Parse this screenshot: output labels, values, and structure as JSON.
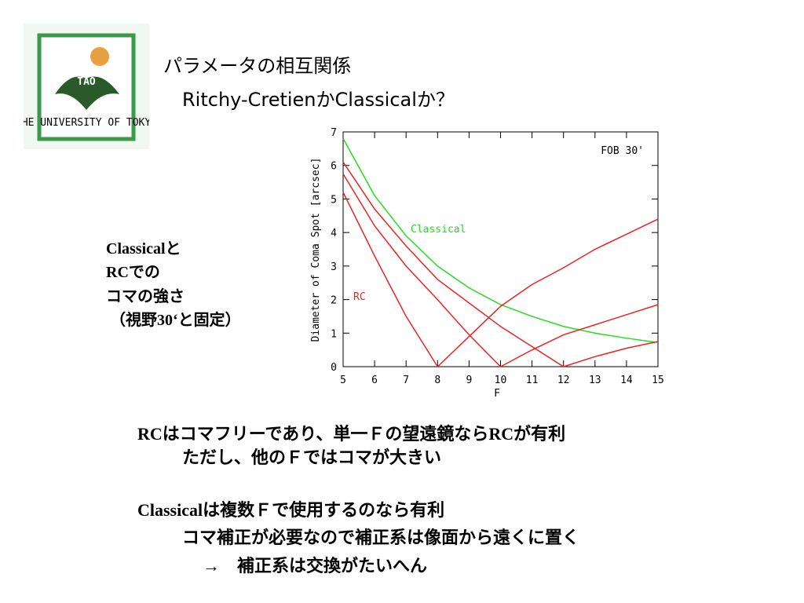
{
  "header": {
    "title": "パラメータの相互関係",
    "subtitle": "Ritchy-CretienかClassicalか？"
  },
  "logo": {
    "label": "TAO",
    "caption": "THE UNIVERSITY OF TOKYO"
  },
  "side_note": [
    "Classicalと",
    "RCでの",
    "コマの強さ",
    "（視野30‘と固定）"
  ],
  "bullets": [
    "RCはコマフリーであり、単一Ｆの望遠鏡ならRCが有利",
    "ただし、他のＦではコマが大きい",
    "Classicalは複数Ｆで使用するのなら有利",
    "コマ補正が必要なので補正系は像面から遠くに置く",
    "→　補正系は交換がたいへん"
  ],
  "chart_data": {
    "type": "line",
    "annotation": "FOB 30'",
    "x_label": "F",
    "y_label": "Diameter of Coma Spot [arcsec]",
    "x": [
      5,
      6,
      7,
      8,
      9,
      10,
      11,
      12,
      13,
      14,
      15
    ],
    "series": [
      {
        "name": "Classical",
        "color": "#22dd22",
        "values": [
          6.8,
          5.1,
          3.9,
          3.0,
          2.35,
          1.85,
          1.5,
          1.2,
          1.0,
          0.85,
          0.72
        ]
      },
      {
        "name": "RC",
        "color": "#ee2222",
        "values": [
          5.2,
          3.3,
          1.5,
          0,
          0.9,
          1.8,
          2.45,
          2.95,
          3.5,
          3.95,
          4.4
        ]
      },
      {
        "color": "#ee2222",
        "values": [
          5.75,
          4.2,
          3.0,
          2.0,
          0.95,
          0,
          0.5,
          0.95,
          1.25,
          1.55,
          1.85
        ]
      },
      {
        "color": "#ee2222",
        "values": [
          6.1,
          4.7,
          3.6,
          2.6,
          1.9,
          1.2,
          0.6,
          0,
          0.3,
          0.55,
          0.75
        ]
      }
    ],
    "xlim": [
      5,
      15
    ],
    "ylim": [
      0,
      7
    ],
    "xticks": [
      5,
      6,
      7,
      8,
      9,
      10,
      11,
      12,
      13,
      14,
      15
    ],
    "yticks": [
      0,
      1,
      2,
      3,
      4,
      5,
      6,
      7
    ]
  }
}
